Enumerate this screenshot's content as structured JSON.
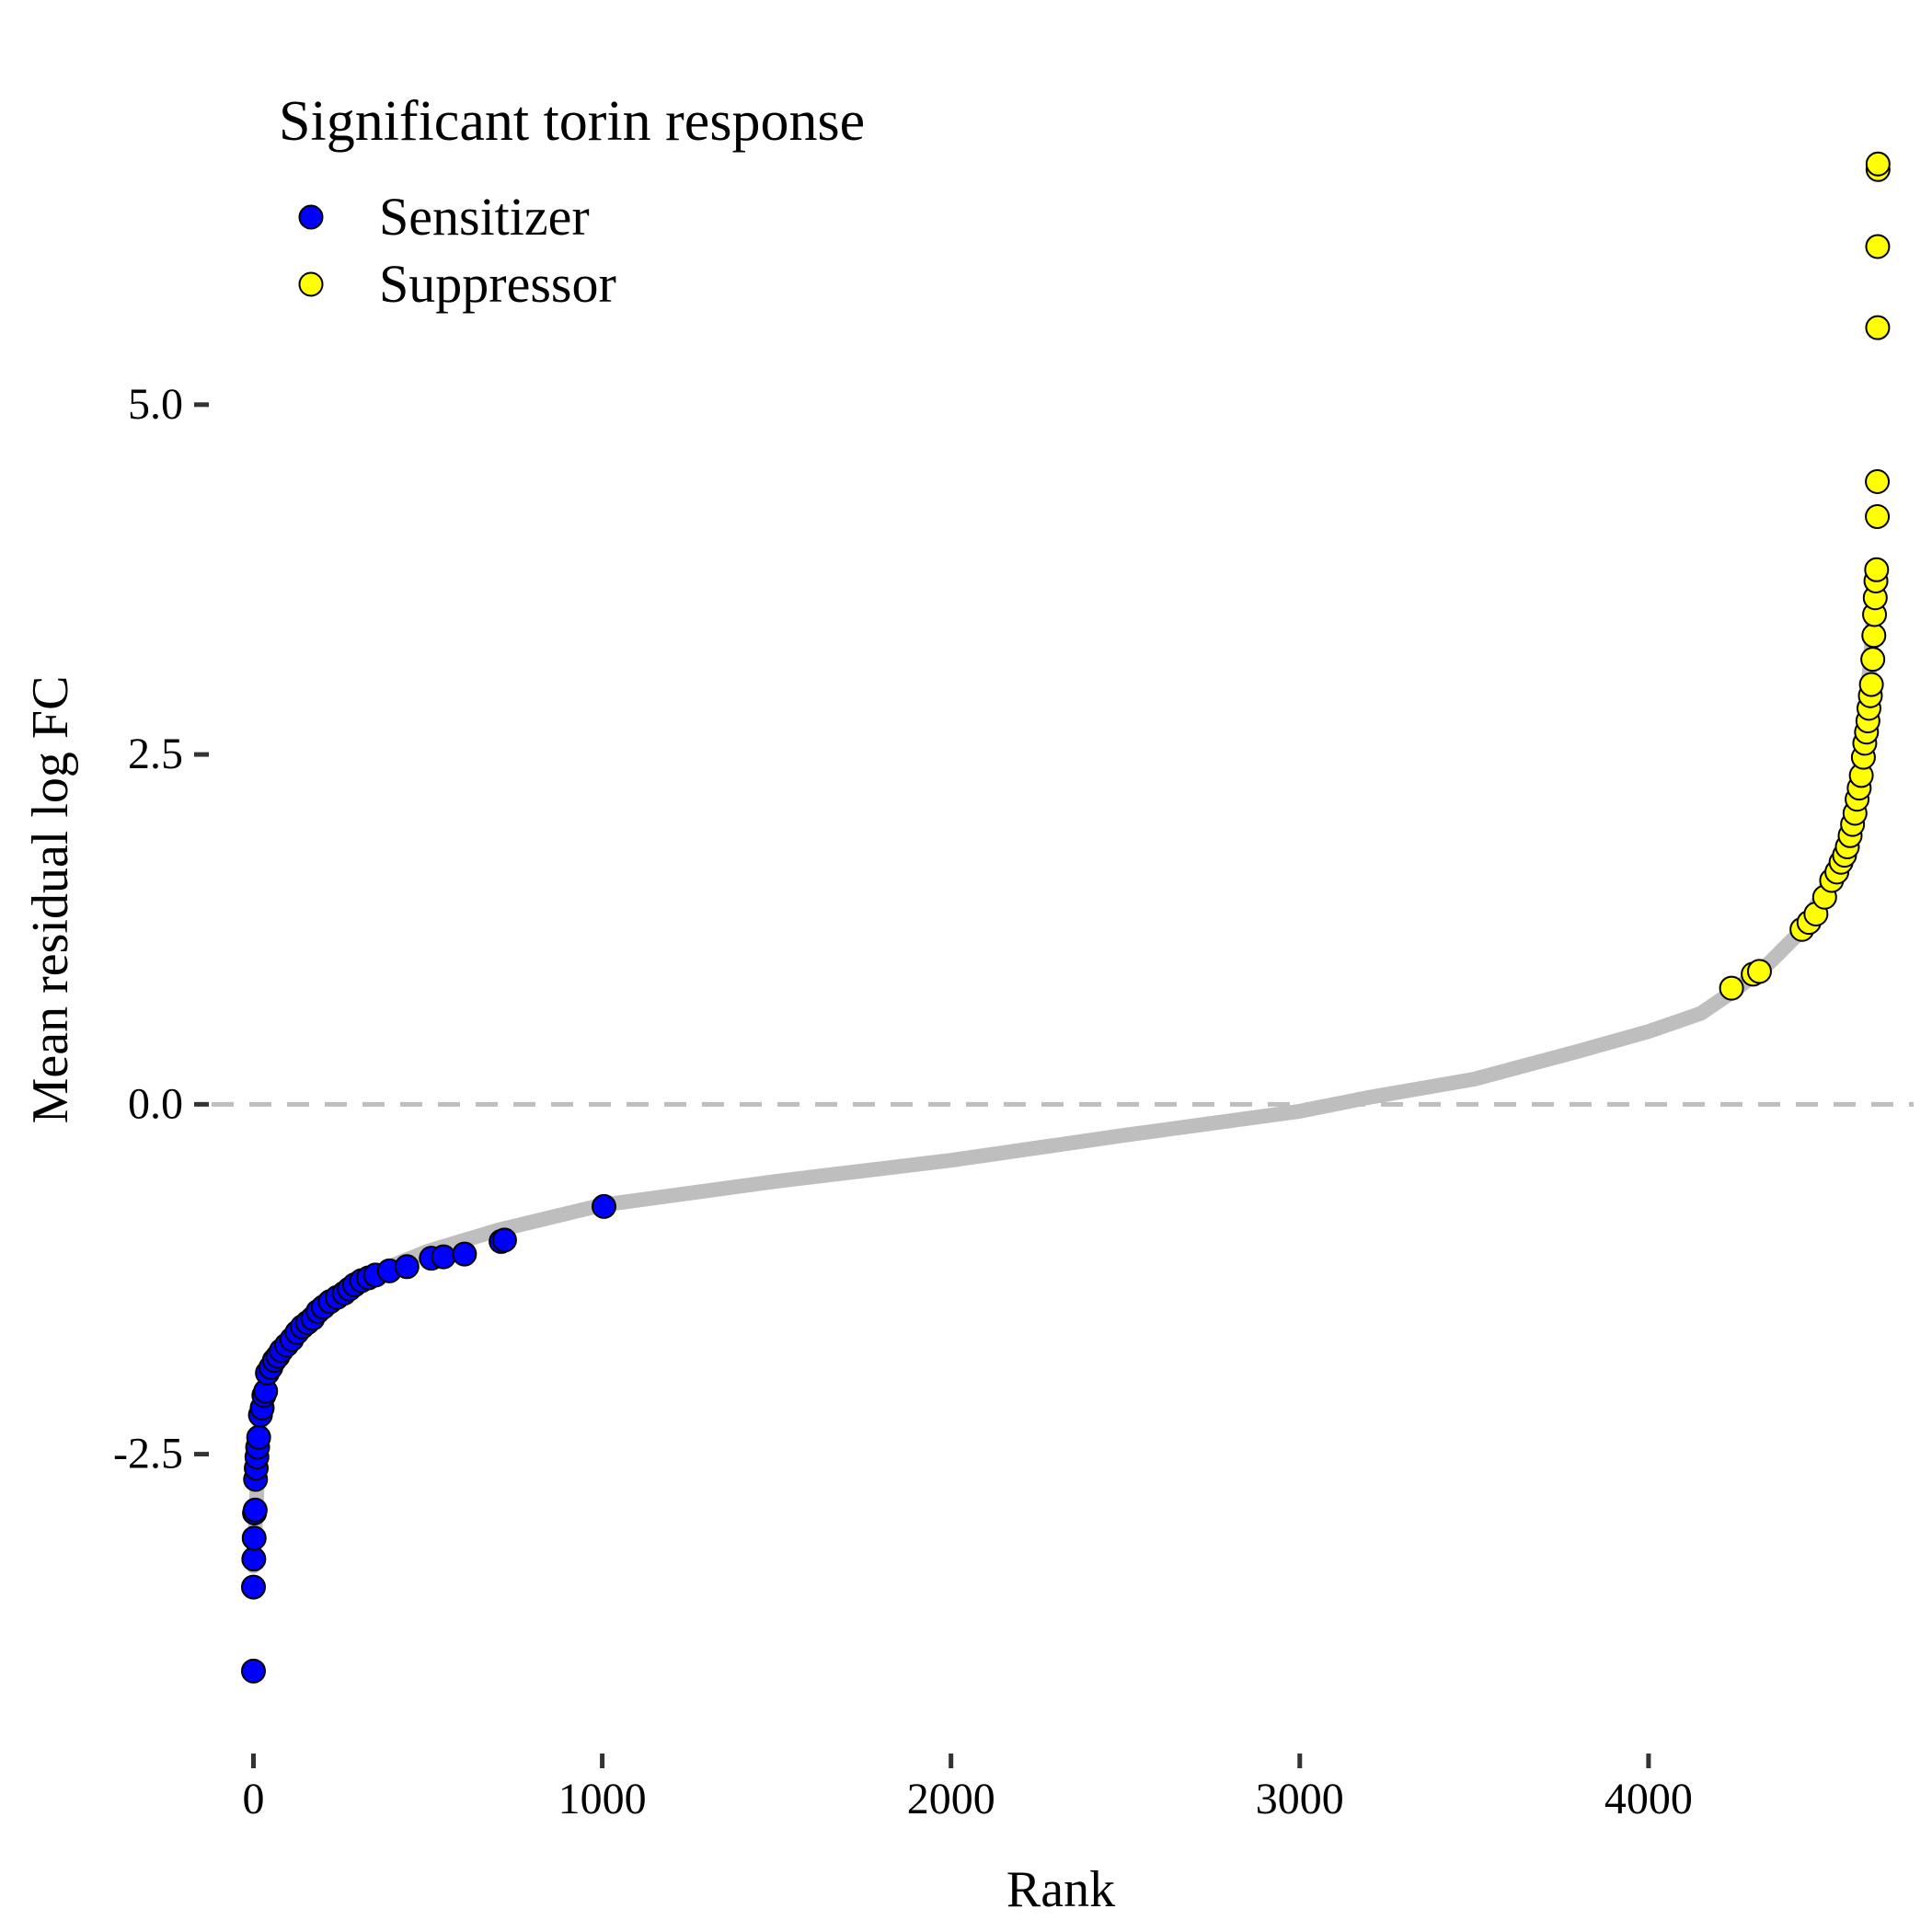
{
  "chart_data": {
    "type": "scatter",
    "title": "",
    "xlabel": "Rank",
    "ylabel": "Mean residual log FC",
    "xlim": [
      -120,
      4760
    ],
    "ylim": [
      -4.6,
      7.3
    ],
    "x_ticks": [
      0,
      1000,
      2000,
      3000,
      4000
    ],
    "x_tick_labels": [
      "0",
      "1000",
      "2000",
      "3000",
      "4000"
    ],
    "y_ticks": [
      -2.5,
      0,
      2.5,
      5
    ],
    "y_tick_labels": [
      "-2.5",
      "0.0",
      "2.5",
      "5.0"
    ],
    "reference_line": {
      "y": 0,
      "style": "dashed",
      "color": "#bebebe"
    },
    "grid": false,
    "background_curve": {
      "name": "",
      "color": "#bebebe",
      "points": [
        [
          0,
          -3.3
        ],
        [
          20,
          -2.2
        ],
        [
          50,
          -1.85
        ],
        [
          100,
          -1.65
        ],
        [
          200,
          -1.4
        ],
        [
          350,
          -1.2
        ],
        [
          500,
          -1.05
        ],
        [
          700,
          -0.9
        ],
        [
          1000,
          -0.72
        ],
        [
          1500,
          -0.55
        ],
        [
          2000,
          -0.4
        ],
        [
          2500,
          -0.22
        ],
        [
          3000,
          -0.05
        ],
        [
          3200,
          0.05
        ],
        [
          3500,
          0.18
        ],
        [
          3800,
          0.38
        ],
        [
          4000,
          0.52
        ],
        [
          4150,
          0.65
        ],
        [
          4250,
          0.82
        ],
        [
          4350,
          1.02
        ],
        [
          4430,
          1.22
        ],
        [
          4500,
          1.5
        ],
        [
          4560,
          1.85
        ],
        [
          4600,
          2.3
        ],
        [
          4620,
          2.7
        ],
        [
          4640,
          3.3
        ],
        [
          4650,
          3.8
        ]
      ]
    },
    "legend": {
      "title": "Significant torin response",
      "position": "top-left",
      "entries": [
        {
          "label": "Sensitizer",
          "color": "#0000ff"
        },
        {
          "label": "Suppressor",
          "color": "#ffff00"
        }
      ]
    },
    "series": [
      {
        "name": "Sensitizer",
        "color": "#0000ff",
        "points": [
          [
            0,
            -4.05
          ],
          [
            0,
            -3.45
          ],
          [
            1,
            -3.25
          ],
          [
            2,
            -3.1
          ],
          [
            3,
            -2.92
          ],
          [
            5,
            -2.9
          ],
          [
            6,
            -2.68
          ],
          [
            8,
            -2.6
          ],
          [
            10,
            -2.52
          ],
          [
            12,
            -2.45
          ],
          [
            15,
            -2.38
          ],
          [
            20,
            -2.22
          ],
          [
            25,
            -2.17
          ],
          [
            30,
            -2.08
          ],
          [
            35,
            -2.05
          ],
          [
            40,
            -1.92
          ],
          [
            50,
            -1.88
          ],
          [
            60,
            -1.83
          ],
          [
            70,
            -1.8
          ],
          [
            80,
            -1.76
          ],
          [
            95,
            -1.72
          ],
          [
            110,
            -1.68
          ],
          [
            125,
            -1.63
          ],
          [
            140,
            -1.59
          ],
          [
            155,
            -1.56
          ],
          [
            170,
            -1.53
          ],
          [
            185,
            -1.48
          ],
          [
            200,
            -1.45
          ],
          [
            220,
            -1.41
          ],
          [
            240,
            -1.38
          ],
          [
            260,
            -1.35
          ],
          [
            275,
            -1.32
          ],
          [
            290,
            -1.29
          ],
          [
            310,
            -1.26
          ],
          [
            330,
            -1.24
          ],
          [
            350,
            -1.22
          ],
          [
            390,
            -1.19
          ],
          [
            440,
            -1.16
          ],
          [
            510,
            -1.1
          ],
          [
            545,
            -1.09
          ],
          [
            605,
            -1.07
          ],
          [
            710,
            -0.98
          ],
          [
            720,
            -0.97
          ],
          [
            1005,
            -0.73
          ]
        ]
      },
      {
        "name": "Suppressor",
        "color": "#ffff00",
        "points": [
          [
            4238,
            0.83
          ],
          [
            4300,
            0.93
          ],
          [
            4318,
            0.95
          ],
          [
            4440,
            1.25
          ],
          [
            4460,
            1.3
          ],
          [
            4480,
            1.36
          ],
          [
            4505,
            1.48
          ],
          [
            4525,
            1.6
          ],
          [
            4540,
            1.66
          ],
          [
            4552,
            1.73
          ],
          [
            4562,
            1.78
          ],
          [
            4570,
            1.84
          ],
          [
            4578,
            1.92
          ],
          [
            4585,
            2.0
          ],
          [
            4592,
            2.08
          ],
          [
            4598,
            2.18
          ],
          [
            4604,
            2.26
          ],
          [
            4610,
            2.35
          ],
          [
            4616,
            2.48
          ],
          [
            4620,
            2.58
          ],
          [
            4625,
            2.66
          ],
          [
            4629,
            2.74
          ],
          [
            4632,
            2.83
          ],
          [
            4636,
            2.92
          ],
          [
            4639,
            3.0
          ],
          [
            4643,
            3.18
          ],
          [
            4646,
            3.35
          ],
          [
            4648,
            3.5
          ],
          [
            4650,
            3.62
          ],
          [
            4652,
            3.74
          ],
          [
            4654,
            3.82
          ],
          [
            4656,
            4.2
          ],
          [
            4656,
            4.45
          ],
          [
            4657,
            5.55
          ],
          [
            4657,
            6.13
          ],
          [
            4658,
            6.68
          ],
          [
            4658,
            6.72
          ]
        ]
      }
    ]
  }
}
